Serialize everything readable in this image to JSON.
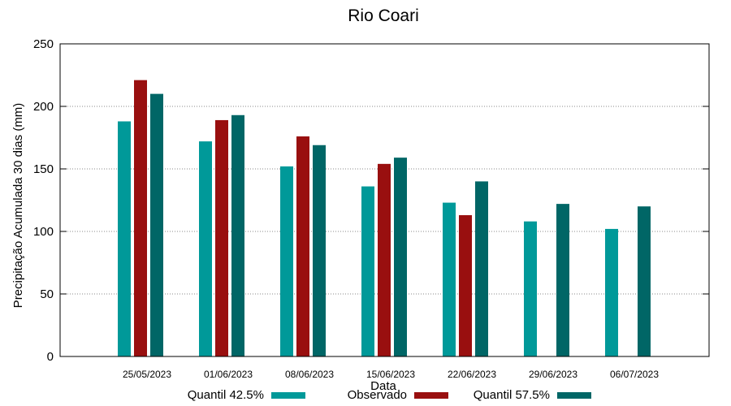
{
  "chart_data": {
    "type": "bar",
    "title": "Rio Coari",
    "xlabel": "Data",
    "ylabel": "Precipitação Acumulada 30 dias (mm)",
    "ylim": [
      0,
      250
    ],
    "yticks": [
      0,
      50,
      100,
      150,
      200,
      250
    ],
    "grid": true,
    "legend_position": "bottom",
    "categories": [
      "25/05/2023",
      "01/06/2023",
      "08/06/2023",
      "15/06/2023",
      "22/06/2023",
      "29/06/2023",
      "06/07/2023"
    ],
    "series": [
      {
        "name": "Quantil 42.5%",
        "color": "#009999",
        "values": [
          188,
          172,
          152,
          136,
          123,
          108,
          102
        ]
      },
      {
        "name": "Observado",
        "color": "#990f0f",
        "values": [
          221,
          189,
          176,
          154,
          113,
          null,
          null
        ]
      },
      {
        "name": "Quantil 57.5%",
        "color": "#006666",
        "values": [
          210,
          193,
          169,
          159,
          140,
          122,
          120
        ]
      }
    ]
  }
}
